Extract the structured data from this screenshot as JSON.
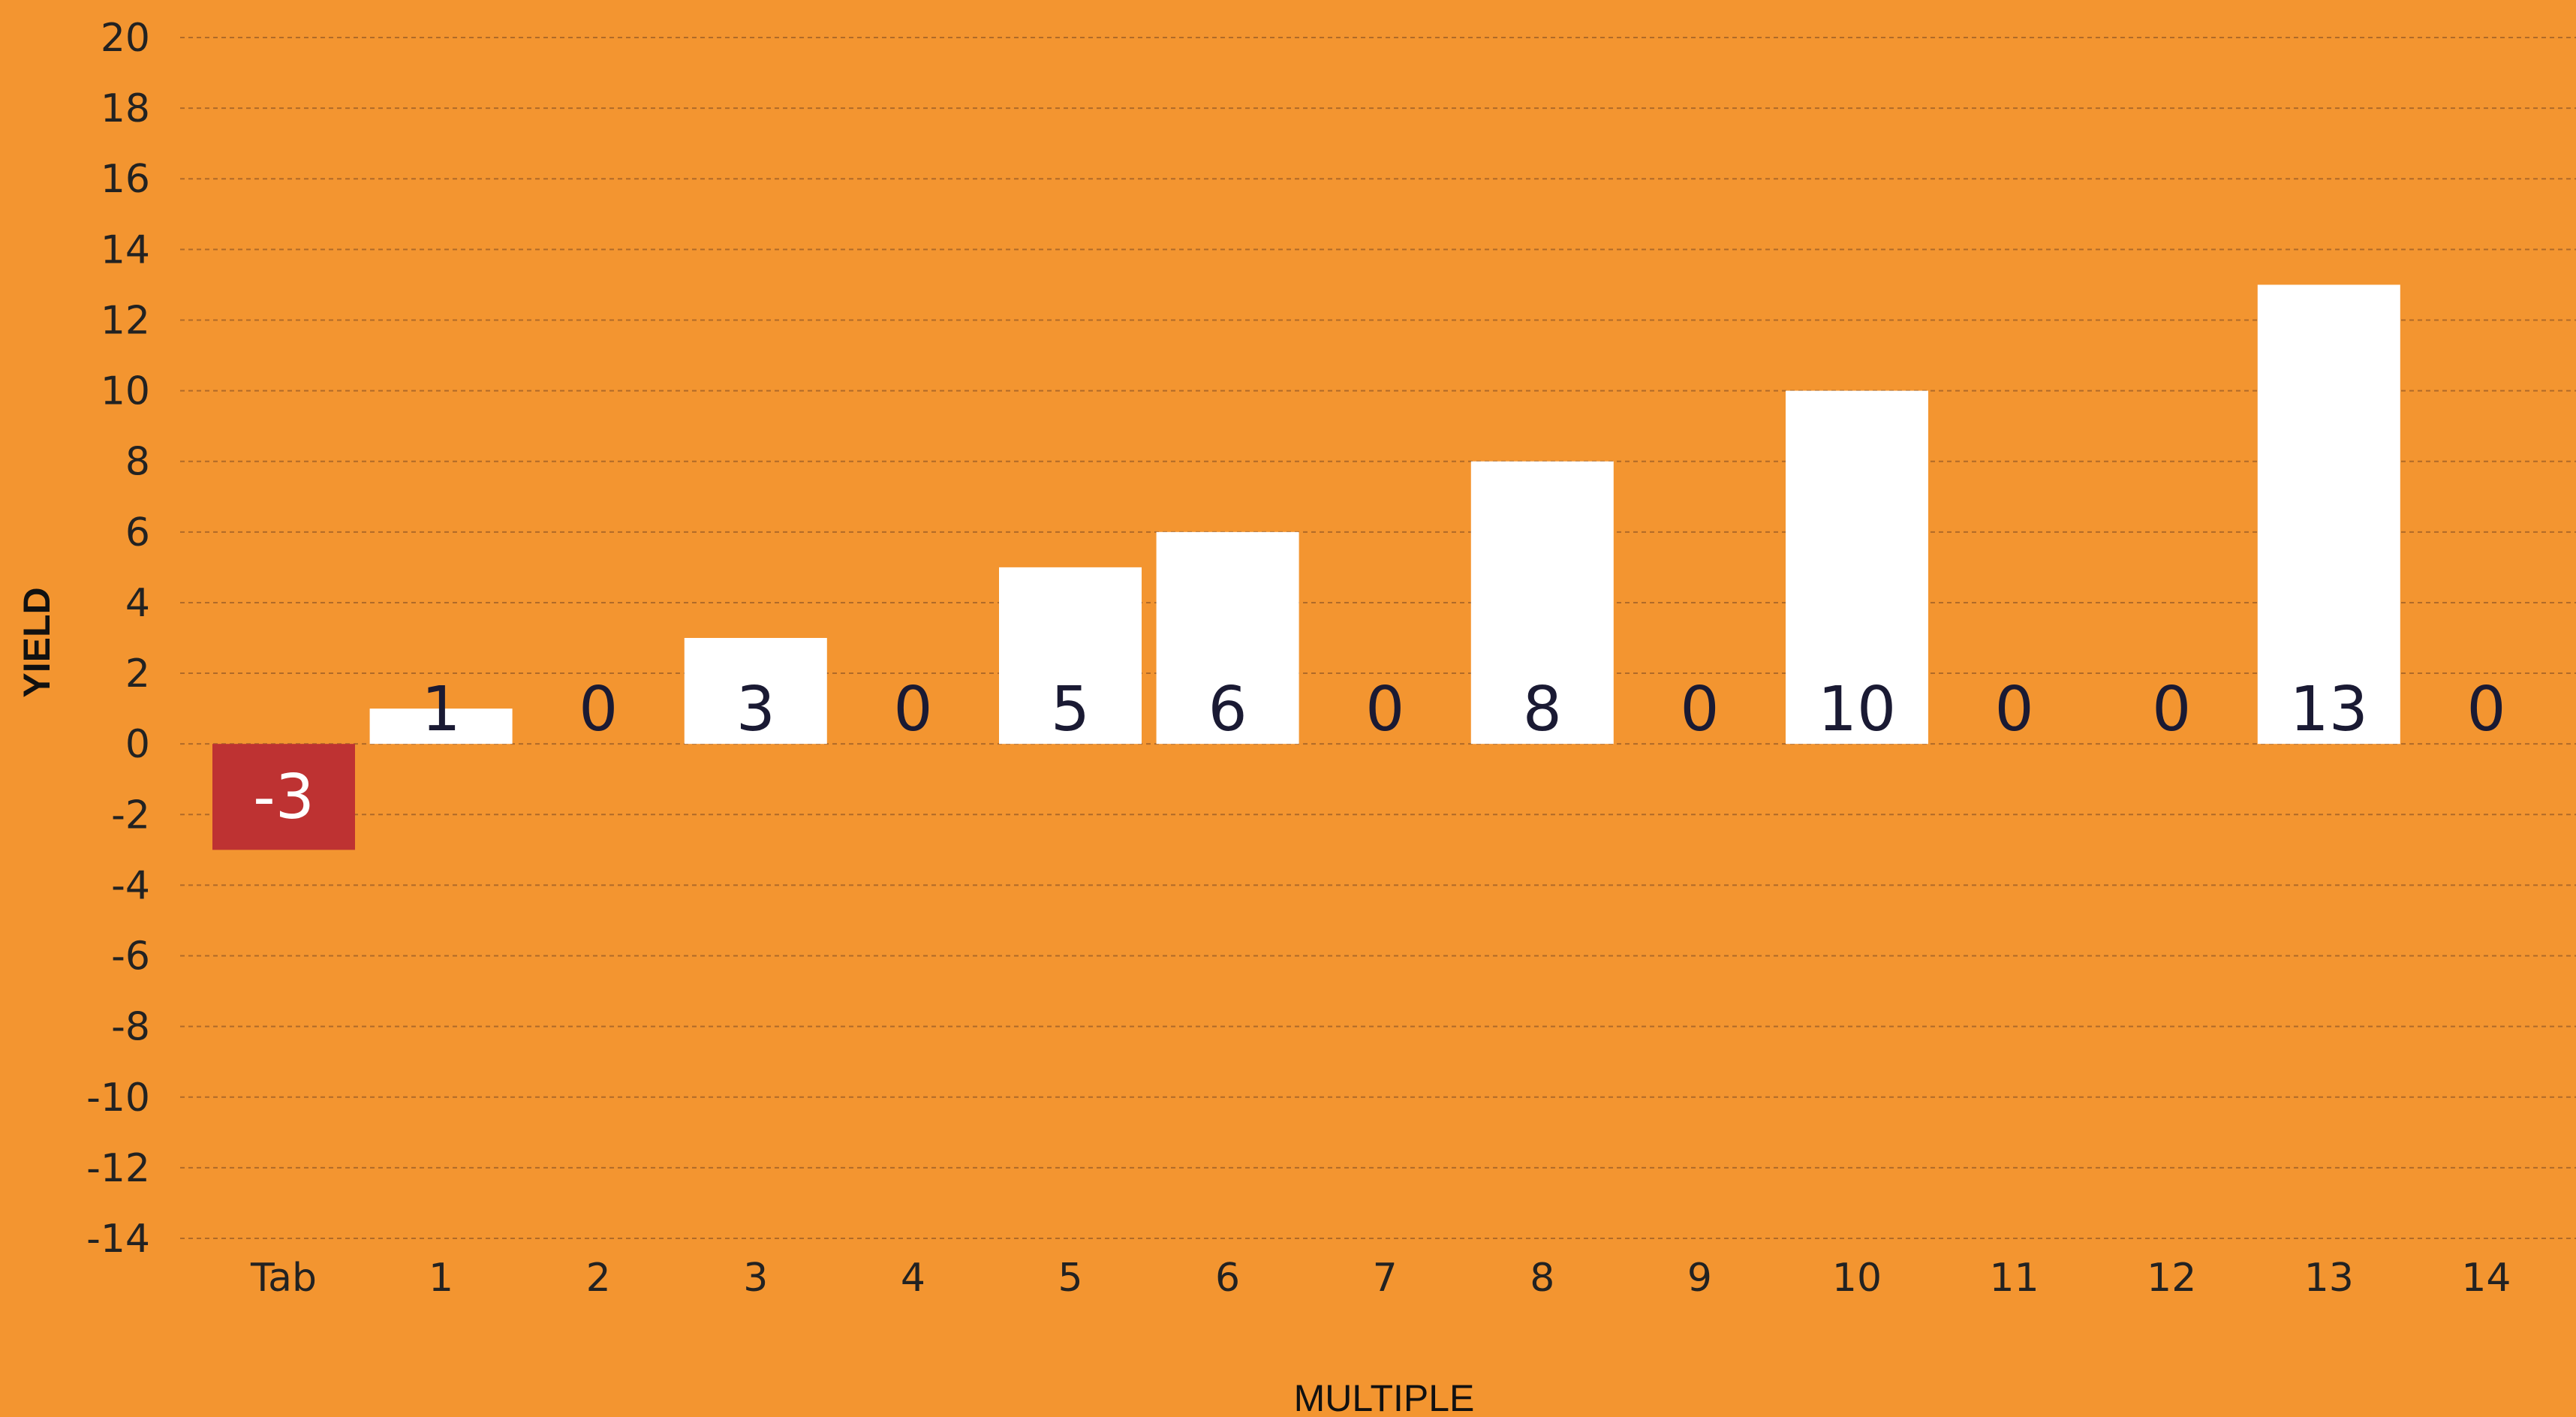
{
  "chart_data": {
    "type": "bar",
    "categories": [
      "Tab",
      "1",
      "2",
      "3",
      "4",
      "5",
      "6",
      "7",
      "8",
      "9",
      "10",
      "11",
      "12",
      "13",
      "14"
    ],
    "values": [
      -3,
      1,
      0,
      3,
      0,
      5,
      6,
      0,
      8,
      0,
      10,
      0,
      0,
      13,
      0
    ],
    "data_labels": [
      "-3",
      "1",
      "0",
      "3",
      "0",
      "5",
      "6",
      "0",
      "8",
      "0",
      "10",
      "0",
      "0",
      "13",
      "0"
    ],
    "xlabel": "MULTIPLE",
    "ylabel": "YIELD",
    "ylim": [
      -14,
      20
    ],
    "yticks": [
      20,
      18,
      16,
      14,
      12,
      10,
      8,
      6,
      4,
      2,
      0,
      -2,
      -4,
      -6,
      -8,
      -10,
      -12,
      -14
    ],
    "ytick_labels": [
      "20",
      "18",
      "16",
      "14",
      "12",
      "10",
      "8",
      "6",
      "4",
      "2",
      "0",
      "-2",
      "-4",
      "-6",
      "-8",
      "-10",
      "-12",
      "-14"
    ],
    "grid": true,
    "legend": "none",
    "colors": {
      "background": "#F39530",
      "positive_bar": "#FFFFFF",
      "negative_bar": "#BE3232",
      "gridline": "#B06A28",
      "label_on_positive": "#1A1A33",
      "label_on_negative": "#FFFFFF",
      "label_zero": "#1A1A33"
    }
  }
}
